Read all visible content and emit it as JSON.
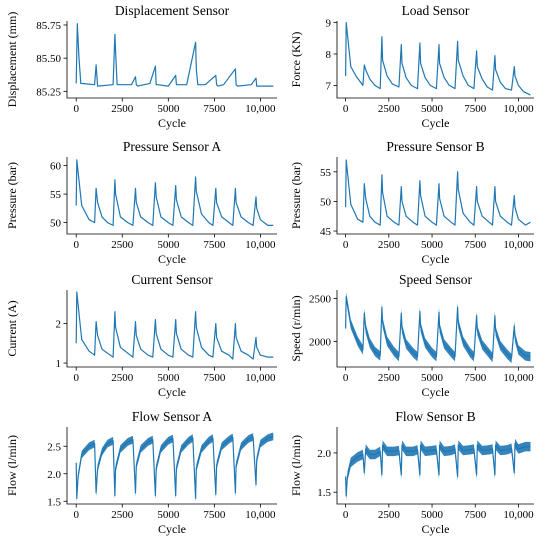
{
  "chart_data": [
    {
      "type": "line",
      "title": "Displacement Sensor",
      "xlabel": "Cycle",
      "ylabel": "Displacement (mm)",
      "xlim": [
        -500,
        10900
      ],
      "ylim": [
        85.2,
        85.78
      ],
      "xticks": [
        0,
        2500,
        5000,
        7500,
        10000
      ],
      "xtick_labels": [
        "0",
        "2500",
        "5000",
        "7500",
        "10,000"
      ],
      "yticks": [
        85.25,
        85.5,
        85.75
      ],
      "ytick_labels": [
        "85.25",
        "85.50",
        "85.75"
      ],
      "series": [
        {
          "x": [
            0,
            60,
            150,
            250,
            1000,
            1080,
            1160,
            2000,
            2100,
            2140,
            2220,
            3000,
            3220,
            3260,
            3340,
            4000,
            4300,
            4340,
            4420,
            5000,
            5400,
            5440,
            5520,
            6000,
            6480,
            6520,
            6600,
            7000,
            7580,
            7620,
            7700,
            8000,
            8640,
            8680,
            8760,
            9500,
            9760,
            9800,
            9880,
            10000,
            10700
          ],
          "y": [
            85.31,
            85.76,
            85.5,
            85.31,
            85.3,
            85.45,
            85.29,
            85.3,
            85.68,
            85.55,
            85.3,
            85.3,
            85.36,
            85.3,
            85.29,
            85.31,
            85.44,
            85.3,
            85.3,
            85.29,
            85.37,
            85.3,
            85.3,
            85.3,
            85.62,
            85.42,
            85.3,
            85.3,
            85.37,
            85.3,
            85.29,
            85.3,
            85.42,
            85.3,
            85.29,
            85.3,
            85.35,
            85.29,
            85.29,
            85.29,
            85.29
          ]
        }
      ]
    },
    {
      "type": "line",
      "title": "Load Sensor",
      "xlabel": "Cycle",
      "ylabel": "Force (KN)",
      "xlim": [
        -500,
        10900
      ],
      "ylim": [
        6.6,
        9.05
      ],
      "xticks": [
        0,
        2500,
        5000,
        7500,
        10000
      ],
      "xtick_labels": [
        "0",
        "2500",
        "5000",
        "7500",
        "10,000"
      ],
      "yticks": [
        7,
        8,
        9
      ],
      "ytick_labels": [
        "7",
        "8",
        "9"
      ],
      "series": [
        {
          "x": [
            0,
            30,
            300,
            600,
            1000,
            1080,
            1160,
            1400,
            1700,
            2000,
            2100,
            2140,
            2400,
            2700,
            3080,
            3220,
            3260,
            3500,
            3800,
            4160,
            4300,
            4340,
            4600,
            4900,
            5250,
            5400,
            5440,
            5700,
            6000,
            6330,
            6480,
            6520,
            6800,
            7100,
            7420,
            7580,
            7620,
            7900,
            8200,
            8500,
            8640,
            8680,
            8950,
            9250,
            9600,
            9760,
            9800,
            10000,
            10300,
            10700
          ],
          "y": [
            7.3,
            9.0,
            7.6,
            7.3,
            7.0,
            7.65,
            7.5,
            7.2,
            7.0,
            6.9,
            8.55,
            7.8,
            7.3,
            7.05,
            6.95,
            8.3,
            7.7,
            7.25,
            7.0,
            6.9,
            8.35,
            7.7,
            7.25,
            7.0,
            6.9,
            8.3,
            7.7,
            7.25,
            7.0,
            6.9,
            8.4,
            7.8,
            7.3,
            7.0,
            6.9,
            8.1,
            7.6,
            7.2,
            6.95,
            6.85,
            7.95,
            7.5,
            7.1,
            6.9,
            6.85,
            7.6,
            7.3,
            7.0,
            6.8,
            6.7
          ]
        }
      ]
    },
    {
      "type": "line",
      "title": "Pressure Sensor A",
      "xlabel": "Cycle",
      "ylabel": "Pressure (bar)",
      "xlim": [
        -500,
        10900
      ],
      "ylim": [
        48,
        61.5
      ],
      "xticks": [
        0,
        2500,
        5000,
        7500,
        10000
      ],
      "xtick_labels": [
        "0",
        "2500",
        "5000",
        "7500",
        "10,000"
      ],
      "yticks": [
        50,
        55,
        60
      ],
      "ytick_labels": [
        "50",
        "55",
        "60"
      ],
      "series": [
        {
          "x": [
            0,
            30,
            300,
            700,
            1000,
            1080,
            1160,
            1400,
            1700,
            2000,
            2100,
            2140,
            2400,
            2800,
            3080,
            3220,
            3260,
            3500,
            3900,
            4160,
            4300,
            4340,
            4600,
            5000,
            5250,
            5400,
            5440,
            5700,
            6100,
            6330,
            6480,
            6520,
            6800,
            7200,
            7420,
            7580,
            7620,
            7900,
            8300,
            8500,
            8640,
            8680,
            8950,
            9350,
            9600,
            9760,
            9800,
            10000,
            10400,
            10700
          ],
          "y": [
            53,
            61,
            53,
            50.5,
            50,
            56,
            53.5,
            51,
            50,
            49.5,
            57.5,
            55,
            51,
            50,
            49.5,
            56,
            53.5,
            51,
            50,
            49.5,
            57,
            54.5,
            51,
            50,
            49.5,
            56.5,
            54,
            51,
            50,
            49.5,
            58,
            55.5,
            51.5,
            50,
            49.5,
            56,
            53.5,
            51,
            50,
            49.5,
            56,
            53.5,
            51,
            50,
            49.5,
            54.5,
            52.5,
            50.5,
            49.5,
            49.5
          ]
        }
      ]
    },
    {
      "type": "line",
      "title": "Pressure Sensor B",
      "xlabel": "Cycle",
      "ylabel": "Pressure (bar)",
      "xlim": [
        -500,
        10900
      ],
      "ylim": [
        44.5,
        57.5
      ],
      "xticks": [
        0,
        2500,
        5000,
        7500,
        10000
      ],
      "xtick_labels": [
        "0",
        "2500",
        "5000",
        "7500",
        "10,000"
      ],
      "yticks": [
        45,
        50,
        55
      ],
      "ytick_labels": [
        "45",
        "50",
        "55"
      ],
      "series": [
        {
          "x": [
            0,
            30,
            300,
            700,
            1000,
            1080,
            1160,
            1400,
            1700,
            2000,
            2100,
            2140,
            2400,
            2800,
            3080,
            3220,
            3260,
            3500,
            3900,
            4160,
            4300,
            4340,
            4600,
            5000,
            5250,
            5400,
            5440,
            5700,
            6100,
            6330,
            6480,
            6520,
            6800,
            7200,
            7420,
            7580,
            7620,
            7900,
            8300,
            8500,
            8640,
            8680,
            8950,
            9350,
            9600,
            9760,
            9800,
            10000,
            10400,
            10700
          ],
          "y": [
            49,
            57,
            49.5,
            47,
            46.5,
            53,
            50.5,
            47.5,
            46.5,
            46,
            54.5,
            51.5,
            47.5,
            46.5,
            46,
            52.5,
            50,
            47.5,
            46.5,
            46,
            53.5,
            51,
            47.5,
            46.5,
            46,
            53,
            50.5,
            47.5,
            46.5,
            46,
            55,
            52,
            48,
            46.5,
            46,
            52.5,
            50,
            47.5,
            46.5,
            46,
            52.5,
            50,
            47.5,
            46.5,
            46,
            51,
            49,
            47,
            46,
            46.5
          ]
        }
      ]
    },
    {
      "type": "line",
      "title": "Current Sensor",
      "xlabel": "Cycle",
      "ylabel": "Current (A)",
      "xlim": [
        -500,
        10900
      ],
      "ylim": [
        0.9,
        2.85
      ],
      "xticks": [
        0,
        2500,
        5000,
        7500,
        10000
      ],
      "xtick_labels": [
        "0",
        "2500",
        "5000",
        "7500",
        "10,000"
      ],
      "yticks": [
        1,
        2
      ],
      "ytick_labels": [
        "1",
        "2"
      ],
      "series": [
        {
          "x": [
            0,
            30,
            300,
            700,
            1000,
            1080,
            1160,
            1400,
            1700,
            2000,
            2100,
            2140,
            2400,
            2800,
            3080,
            3220,
            3260,
            3500,
            3900,
            4160,
            4300,
            4340,
            4600,
            5000,
            5250,
            5400,
            5440,
            5700,
            6100,
            6330,
            6480,
            6520,
            6800,
            7200,
            7420,
            7580,
            7620,
            7900,
            8300,
            8500,
            8640,
            8680,
            8950,
            9350,
            9600,
            9760,
            9800,
            10000,
            10400,
            10700
          ],
          "y": [
            1.5,
            2.8,
            1.6,
            1.3,
            1.2,
            2.05,
            1.7,
            1.35,
            1.25,
            1.15,
            2.3,
            1.9,
            1.4,
            1.25,
            1.15,
            2.05,
            1.7,
            1.35,
            1.2,
            1.15,
            2.1,
            1.75,
            1.35,
            1.2,
            1.15,
            2.1,
            1.75,
            1.35,
            1.2,
            1.15,
            2.3,
            1.9,
            1.4,
            1.2,
            1.15,
            2.0,
            1.65,
            1.3,
            1.2,
            1.1,
            2.0,
            1.65,
            1.3,
            1.2,
            1.1,
            1.65,
            1.4,
            1.2,
            1.15,
            1.15
          ]
        }
      ]
    },
    {
      "type": "line",
      "title": "Speed Sensor",
      "xlabel": "Cycle",
      "ylabel": "Speed (r/min)",
      "xlim": [
        -500,
        10900
      ],
      "ylim": [
        1700,
        2600
      ],
      "xticks": [
        0,
        2500,
        5000,
        7500,
        10000
      ],
      "xtick_labels": [
        "0",
        "2500",
        "5000",
        "7500",
        "10,000"
      ],
      "yticks": [
        2000,
        2500
      ],
      "ytick_labels": [
        "2000",
        "2500"
      ],
      "band_half_width": 55,
      "series": [
        {
          "x": [
            0,
            30,
            300,
            700,
            1000,
            1080,
            1160,
            1400,
            1700,
            2000,
            2100,
            2140,
            2400,
            2800,
            3080,
            3220,
            3260,
            3500,
            3900,
            4160,
            4300,
            4340,
            4600,
            5000,
            5250,
            5400,
            5440,
            5700,
            6100,
            6330,
            6480,
            6520,
            6800,
            7200,
            7420,
            7580,
            7620,
            7900,
            8300,
            8500,
            8640,
            8680,
            8950,
            9350,
            9600,
            9760,
            9800,
            10000,
            10400,
            10700
          ],
          "y": [
            2150,
            2520,
            2200,
            2000,
            1900,
            2330,
            2150,
            1980,
            1880,
            1830,
            2400,
            2220,
            2000,
            1880,
            1820,
            2330,
            2150,
            1970,
            1870,
            1820,
            2350,
            2170,
            1980,
            1870,
            1820,
            2340,
            2160,
            1970,
            1870,
            1820,
            2400,
            2210,
            2000,
            1870,
            1820,
            2300,
            2130,
            1960,
            1860,
            1810,
            2300,
            2120,
            1950,
            1850,
            1800,
            2180,
            2050,
            1900,
            1830,
            1820
          ]
        }
      ]
    },
    {
      "type": "line",
      "title": "Flow Sensor A",
      "xlabel": "Cycle",
      "ylabel": "Flow (l/min)",
      "xlim": [
        -500,
        10900
      ],
      "ylim": [
        1.45,
        2.85
      ],
      "xticks": [
        0,
        2500,
        5000,
        7500,
        10000
      ],
      "xtick_labels": [
        "0",
        "2500",
        "5000",
        "7500",
        "10,000"
      ],
      "yticks": [
        1.5,
        2.0,
        2.5
      ],
      "ytick_labels": [
        "1.5",
        "2.0",
        "2.5"
      ],
      "band_half_width": 0.07,
      "series": [
        {
          "x": [
            0,
            30,
            100,
            300,
            700,
            1000,
            1080,
            1160,
            1400,
            1700,
            2000,
            2100,
            2140,
            2400,
            2800,
            3080,
            3220,
            3260,
            3500,
            3900,
            4160,
            4300,
            4340,
            4600,
            5000,
            5250,
            5400,
            5440,
            5700,
            6100,
            6330,
            6480,
            6520,
            6800,
            7200,
            7420,
            7580,
            7620,
            7900,
            8300,
            8500,
            8640,
            8680,
            8950,
            9350,
            9600,
            9760,
            9800,
            10000,
            10400,
            10700
          ],
          "y": [
            2.2,
            1.55,
            1.95,
            2.35,
            2.5,
            2.55,
            1.65,
            2.1,
            2.4,
            2.55,
            2.6,
            1.6,
            2.1,
            2.45,
            2.58,
            2.62,
            1.65,
            2.15,
            2.45,
            2.58,
            2.62,
            1.6,
            2.1,
            2.45,
            2.6,
            2.64,
            1.6,
            2.1,
            2.45,
            2.6,
            2.65,
            1.55,
            2.1,
            2.45,
            2.6,
            2.65,
            1.62,
            2.15,
            2.5,
            2.62,
            2.66,
            1.65,
            2.15,
            2.5,
            2.63,
            2.67,
            1.8,
            2.25,
            2.55,
            2.65,
            2.68
          ]
        }
      ]
    },
    {
      "type": "line",
      "title": "Flow Sensor B",
      "xlabel": "Cycle",
      "ylabel": "Flow (l/min)",
      "xlim": [
        -500,
        10900
      ],
      "ylim": [
        1.35,
        2.33
      ],
      "xticks": [
        0,
        2500,
        5000,
        7500,
        10000
      ],
      "xtick_labels": [
        "0",
        "2500",
        "5000",
        "7500",
        "10,000"
      ],
      "yticks": [
        1.5,
        2.0
      ],
      "ytick_labels": [
        "1.5",
        "2.0"
      ],
      "band_half_width": 0.06,
      "series": [
        {
          "x": [
            0,
            30,
            100,
            300,
            700,
            1000,
            1080,
            1160,
            1400,
            1700,
            2000,
            2100,
            2140,
            2400,
            2800,
            3080,
            3220,
            3260,
            3500,
            3900,
            4160,
            4300,
            4340,
            4600,
            5000,
            5250,
            5400,
            5440,
            5700,
            6100,
            6330,
            6480,
            6520,
            6800,
            7200,
            7420,
            7580,
            7620,
            7900,
            8300,
            8500,
            8640,
            8680,
            8950,
            9350,
            9600,
            9760,
            9800,
            10000,
            10400,
            10700
          ],
          "y": [
            1.7,
            1.45,
            1.7,
            1.88,
            1.95,
            1.98,
            1.75,
            2.05,
            1.98,
            1.98,
            2.02,
            1.72,
            2.1,
            2.02,
            2.02,
            2.03,
            1.72,
            2.1,
            2.02,
            2.02,
            2.04,
            1.72,
            2.1,
            2.02,
            2.03,
            2.04,
            1.72,
            2.1,
            2.02,
            2.03,
            2.05,
            1.7,
            2.1,
            2.03,
            2.04,
            2.05,
            1.72,
            2.1,
            2.03,
            2.04,
            2.05,
            1.72,
            2.1,
            2.03,
            2.04,
            2.06,
            1.75,
            2.12,
            2.05,
            2.08,
            2.08
          ]
        }
      ]
    }
  ]
}
